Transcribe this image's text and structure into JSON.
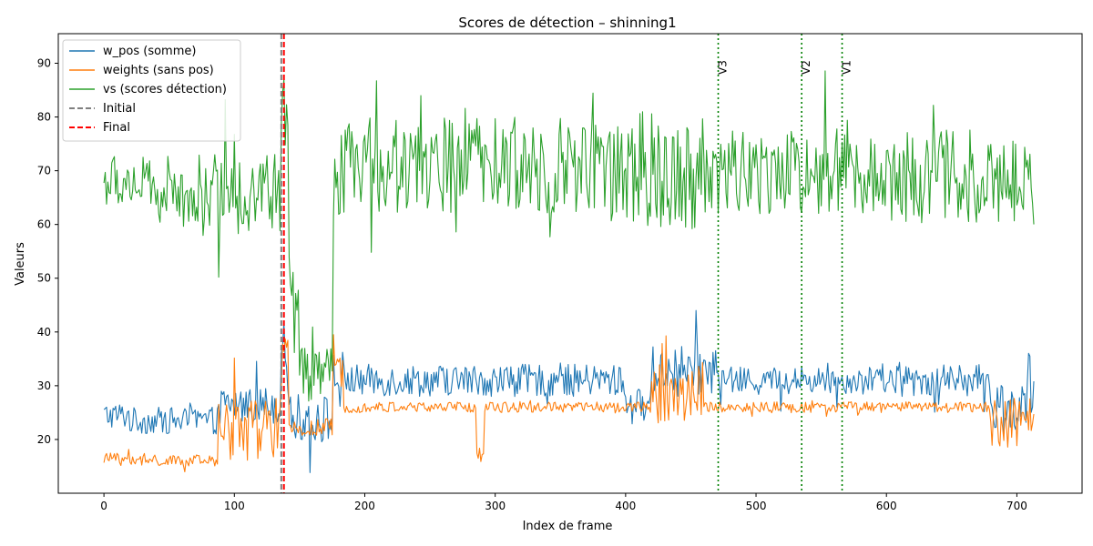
{
  "chart_data": {
    "type": "line",
    "title": "Scores de détection – shinning1",
    "xlabel": "Index de frame",
    "ylabel": "Valeurs",
    "xlim": [
      -35,
      750
    ],
    "ylim": [
      10,
      95.5
    ],
    "xticks": [
      0,
      100,
      200,
      300,
      400,
      500,
      600,
      700
    ],
    "yticks": [
      20,
      30,
      40,
      50,
      60,
      70,
      80,
      90
    ],
    "grid": false,
    "legend_position": "top-left",
    "n_frames": 714,
    "series": [
      {
        "name": "w_pos (somme)",
        "color": "#1f77b4",
        "style": "solid",
        "segments": [
          {
            "x": [
              0,
              20
            ],
            "base": 24.5,
            "amp": 2.5
          },
          {
            "x": [
              20,
              90
            ],
            "base": 23.5,
            "amp": 2.5
          },
          {
            "x": [
              90,
              136
            ],
            "base": 26.5,
            "amp": 3.5
          },
          {
            "x": [
              136,
              142
            ],
            "base": 38.0,
            "amp": 4.0
          },
          {
            "x": [
              142,
              176
            ],
            "base": 24.0,
            "amp": 4.5
          },
          {
            "x": [
              176,
              184
            ],
            "base": 31.0,
            "amp": 6.0
          },
          {
            "x": [
              184,
              400
            ],
            "base": 31.0,
            "amp": 3.0
          },
          {
            "x": [
              400,
              420
            ],
            "base": 26.5,
            "amp": 3.0
          },
          {
            "x": [
              420,
              470
            ],
            "base": 33.0,
            "amp": 4.5
          },
          {
            "x": [
              470,
              600
            ],
            "base": 31.0,
            "amp": 2.5
          },
          {
            "x": [
              600,
              680
            ],
            "base": 31.0,
            "amp": 3.0
          },
          {
            "x": [
              680,
              714
            ],
            "base": 26.0,
            "amp": 5.0
          }
        ]
      },
      {
        "name": "weights (sans pos)",
        "color": "#ff7f0e",
        "style": "solid",
        "segments": [
          {
            "x": [
              0,
              20
            ],
            "base": 16.5,
            "amp": 1.0
          },
          {
            "x": [
              20,
              88
            ],
            "base": 16.0,
            "amp": 1.0
          },
          {
            "x": [
              88,
              136
            ],
            "base": 22.0,
            "amp": 6.0
          },
          {
            "x": [
              136,
              142
            ],
            "base": 34.0,
            "amp": 5.0
          },
          {
            "x": [
              142,
              176
            ],
            "base": 22.0,
            "amp": 2.0
          },
          {
            "x": [
              176,
              184
            ],
            "base": 30.0,
            "amp": 6.0
          },
          {
            "x": [
              184,
              286
            ],
            "base": 26.0,
            "amp": 1.0
          },
          {
            "x": [
              286,
              292
            ],
            "base": 17.0,
            "amp": 2.0
          },
          {
            "x": [
              292,
              420
            ],
            "base": 26.0,
            "amp": 1.0
          },
          {
            "x": [
              420,
              460
            ],
            "base": 28.5,
            "amp": 6.0
          },
          {
            "x": [
              460,
              680
            ],
            "base": 26.0,
            "amp": 1.0
          },
          {
            "x": [
              680,
              714
            ],
            "base": 23.0,
            "amp": 5.0
          }
        ]
      },
      {
        "name": "vs (scores détection)",
        "color": "#2ca02c",
        "style": "solid",
        "segments": [
          {
            "x": [
              0,
              30
            ],
            "base": 68.0,
            "amp": 5.0
          },
          {
            "x": [
              30,
              90
            ],
            "base": 66.0,
            "amp": 7.0
          },
          {
            "x": [
              90,
              136
            ],
            "base": 66.0,
            "amp": 8.0
          },
          {
            "x": [
              136,
              142
            ],
            "base": 80.0,
            "amp": 8.0
          },
          {
            "x": [
              142,
              150
            ],
            "base": 45.0,
            "amp": 10.0
          },
          {
            "x": [
              150,
              176
            ],
            "base": 32.0,
            "amp": 5.0
          },
          {
            "x": [
              176,
              184
            ],
            "base": 66.0,
            "amp": 12.0
          },
          {
            "x": [
              184,
              400
            ],
            "base": 71.0,
            "amp": 9.0
          },
          {
            "x": [
              400,
              460
            ],
            "base": 70.0,
            "amp": 11.0
          },
          {
            "x": [
              460,
              600
            ],
            "base": 70.0,
            "amp": 8.0
          },
          {
            "x": [
              600,
              714
            ],
            "base": 69.0,
            "amp": 9.0
          }
        ]
      },
      {
        "name": "Initial",
        "color": "#7f7f7f",
        "style": "dashed",
        "vlines": [
          136
        ]
      },
      {
        "name": "Final",
        "color": "#ff0000",
        "style": "dashed",
        "vlines": [
          138
        ]
      }
    ],
    "annotations": [
      {
        "x": 471,
        "label": "V3",
        "color": "#008000",
        "style": "dotted"
      },
      {
        "x": 535,
        "label": "V2",
        "color": "#008000",
        "style": "dotted"
      },
      {
        "x": 566,
        "label": "V1",
        "color": "#008000",
        "style": "dotted"
      }
    ]
  }
}
